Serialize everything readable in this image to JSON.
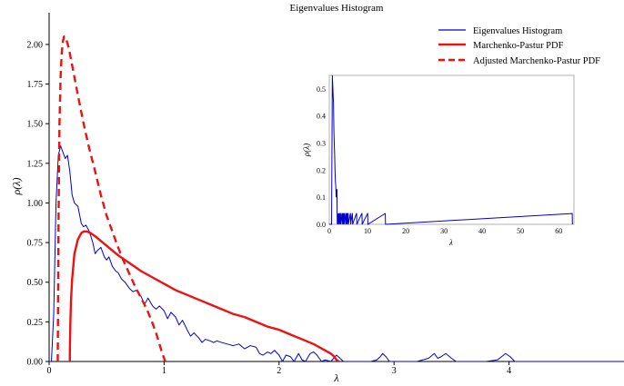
{
  "chart_data": {
    "type": "line",
    "title": "Eigenvalues Histogram",
    "xlabel": "λ",
    "ylabel": "ρ(λ)",
    "xlim": [
      0,
      5
    ],
    "ylim": [
      0,
      2.2
    ],
    "x_ticks": [
      0,
      1,
      2,
      3,
      4
    ],
    "y_ticks": [
      0.0,
      0.25,
      0.5,
      0.75,
      1.0,
      1.25,
      1.5,
      1.75,
      2.0
    ],
    "x_tick_labels": [
      "0",
      "1",
      "2",
      "3",
      "4"
    ],
    "y_tick_labels": [
      "0.00",
      "0.25",
      "0.50",
      "0.75",
      "1.00",
      "1.25",
      "1.50",
      "1.75",
      "2.00"
    ],
    "grid": false,
    "legend_position": "top-right",
    "series": [
      {
        "name": "Eigenvalues Histogram",
        "color": "#0000cc",
        "style": "solid",
        "x": [
          0.0,
          0.02,
          0.04,
          0.06,
          0.08,
          0.1,
          0.12,
          0.14,
          0.16,
          0.18,
          0.2,
          0.22,
          0.25,
          0.28,
          0.3,
          0.32,
          0.35,
          0.38,
          0.4,
          0.42,
          0.45,
          0.48,
          0.5,
          0.52,
          0.55,
          0.58,
          0.6,
          0.63,
          0.66,
          0.7,
          0.73,
          0.76,
          0.8,
          0.83,
          0.86,
          0.9,
          0.93,
          0.96,
          1.0,
          1.03,
          1.06,
          1.1,
          1.13,
          1.16,
          1.2,
          1.23,
          1.26,
          1.3,
          1.33,
          1.36,
          1.4,
          1.43,
          1.46,
          1.5,
          1.55,
          1.6,
          1.65,
          1.7,
          1.75,
          1.8,
          1.83,
          1.86,
          1.9,
          1.93,
          1.96,
          2.0,
          2.03,
          2.06,
          2.1,
          2.13,
          2.17,
          2.2,
          2.23,
          2.27,
          2.3,
          2.33,
          2.37,
          2.4,
          2.45,
          2.5,
          2.53,
          2.56,
          2.6,
          2.65,
          2.7,
          2.75,
          2.8,
          2.85,
          2.88,
          2.9,
          2.93,
          2.96,
          3.0,
          3.1,
          3.2,
          3.3,
          3.35,
          3.38,
          3.41,
          3.45,
          3.5,
          3.54,
          3.57,
          3.6,
          3.7,
          3.8,
          3.9,
          3.97,
          4.01,
          4.05,
          4.1,
          4.2,
          4.3,
          4.5,
          4.7,
          4.9,
          5.0
        ],
        "y": [
          0.0,
          0.0,
          0.3,
          1.0,
          1.3,
          1.36,
          1.32,
          1.28,
          1.3,
          1.2,
          1.05,
          1.0,
          0.98,
          0.87,
          0.85,
          0.86,
          0.82,
          0.75,
          0.68,
          0.7,
          0.72,
          0.66,
          0.64,
          0.66,
          0.6,
          0.57,
          0.56,
          0.52,
          0.5,
          0.46,
          0.44,
          0.45,
          0.41,
          0.36,
          0.4,
          0.35,
          0.33,
          0.35,
          0.32,
          0.27,
          0.31,
          0.28,
          0.23,
          0.26,
          0.2,
          0.16,
          0.18,
          0.15,
          0.12,
          0.14,
          0.13,
          0.12,
          0.13,
          0.12,
          0.11,
          0.1,
          0.11,
          0.08,
          0.1,
          0.09,
          0.05,
          0.04,
          0.06,
          0.05,
          0.07,
          0.04,
          0.0,
          0.04,
          0.03,
          0.0,
          0.05,
          0.01,
          0.0,
          0.05,
          0.06,
          0.04,
          0.0,
          0.01,
          0.0,
          0.04,
          0.02,
          0.0,
          0.0,
          0.0,
          0.0,
          0.0,
          0.0,
          0.01,
          0.03,
          0.05,
          0.03,
          0.0,
          0.0,
          0.0,
          0.0,
          0.02,
          0.05,
          0.02,
          0.03,
          0.05,
          0.02,
          0.0,
          0.0,
          0.0,
          0.0,
          0.0,
          0.01,
          0.05,
          0.03,
          0.0,
          0.0,
          0.0,
          0.0,
          0.0,
          0.0,
          0.0,
          0.0
        ]
      },
      {
        "name": "Marchenko-Pastur PDF",
        "color": "#ee1111",
        "style": "solid",
        "x": [
          0.18,
          0.181,
          0.185,
          0.19,
          0.2,
          0.22,
          0.25,
          0.28,
          0.3,
          0.33,
          0.36,
          0.4,
          0.45,
          0.5,
          0.6,
          0.7,
          0.8,
          0.9,
          1.0,
          1.1,
          1.2,
          1.3,
          1.4,
          1.5,
          1.6,
          1.7,
          1.8,
          1.9,
          2.0,
          2.1,
          2.2,
          2.3,
          2.35,
          2.4,
          2.45,
          2.48,
          2.5,
          2.52
        ],
        "y": [
          0.0,
          0.1,
          0.25,
          0.38,
          0.52,
          0.68,
          0.77,
          0.81,
          0.82,
          0.82,
          0.81,
          0.79,
          0.76,
          0.73,
          0.67,
          0.62,
          0.57,
          0.53,
          0.49,
          0.45,
          0.42,
          0.39,
          0.36,
          0.33,
          0.3,
          0.28,
          0.25,
          0.22,
          0.2,
          0.17,
          0.14,
          0.11,
          0.09,
          0.07,
          0.05,
          0.03,
          0.01,
          0.0
        ]
      },
      {
        "name": "Adjusted Marchenko-Pastur PDF",
        "color": "#ee1111",
        "style": "dashed",
        "x": [
          0.075,
          0.078,
          0.082,
          0.09,
          0.1,
          0.11,
          0.12,
          0.13,
          0.14,
          0.15,
          0.17,
          0.2,
          0.25,
          0.3,
          0.35,
          0.4,
          0.45,
          0.5,
          0.55,
          0.6,
          0.65,
          0.7,
          0.75,
          0.8,
          0.85,
          0.9,
          0.93,
          0.96,
          0.98,
          1.0,
          1.01
        ],
        "y": [
          0.0,
          0.4,
          0.9,
          1.5,
          1.8,
          1.95,
          2.02,
          2.05,
          2.05,
          2.03,
          1.98,
          1.87,
          1.68,
          1.5,
          1.34,
          1.2,
          1.05,
          0.92,
          0.82,
          0.72,
          0.63,
          0.55,
          0.47,
          0.4,
          0.33,
          0.24,
          0.18,
          0.11,
          0.06,
          0.02,
          0.0
        ]
      }
    ],
    "inset": {
      "title": "",
      "xlabel": "λ",
      "ylabel": "ρ(λ)",
      "xlim": [
        0,
        64
      ],
      "ylim": [
        0,
        0.55
      ],
      "x_ticks": [
        0,
        10,
        20,
        30,
        40,
        50,
        60
      ],
      "x_tick_labels": [
        "0",
        "10",
        "20",
        "30",
        "40",
        "50",
        "60"
      ],
      "y_ticks": [
        0.0,
        0.1,
        0.2,
        0.3,
        0.4,
        0.5
      ],
      "y_tick_labels": [
        "0.0",
        "0.1",
        "0.2",
        "0.3",
        "0.4",
        "0.5"
      ],
      "series": [
        {
          "name": "Eigenvalues Histogram",
          "color": "#0000cc",
          "x": [
            0.0,
            0.6,
            0.8,
            1.0,
            1.1,
            1.2,
            1.3,
            1.4,
            1.5,
            1.6,
            1.7,
            1.8,
            1.9,
            2.0,
            2.05,
            2.1,
            2.2,
            2.3,
            2.35,
            2.4,
            2.6,
            2.65,
            2.7,
            2.9,
            2.95,
            3.0,
            3.3,
            3.35,
            3.4,
            3.6,
            3.65,
            3.7,
            3.9,
            3.95,
            4.0,
            4.3,
            4.35,
            4.4,
            4.6,
            4.65,
            4.7,
            4.9,
            4.95,
            5.0,
            5.5,
            5.55,
            5.6,
            6.0,
            6.05,
            6.1,
            7.1,
            7.15,
            7.2,
            8.5,
            8.55,
            8.6,
            10.0,
            10.05,
            10.1,
            14.6,
            14.65,
            14.7,
            63.5,
            63.55,
            63.6
          ],
          "y": [
            0.0,
            0.0,
            0.55,
            0.48,
            0.45,
            0.35,
            0.3,
            0.26,
            0.2,
            0.16,
            0.14,
            0.1,
            0.12,
            0.13,
            0.04,
            0.0,
            0.04,
            0.0,
            0.04,
            0.0,
            0.04,
            0.04,
            0.0,
            0.04,
            0.04,
            0.0,
            0.04,
            0.04,
            0.0,
            0.04,
            0.04,
            0.0,
            0.04,
            0.04,
            0.0,
            0.04,
            0.04,
            0.0,
            0.04,
            0.04,
            0.0,
            0.04,
            0.04,
            0.0,
            0.04,
            0.04,
            0.0,
            0.04,
            0.04,
            0.0,
            0.04,
            0.04,
            0.0,
            0.04,
            0.04,
            0.0,
            0.04,
            0.04,
            0.0,
            0.04,
            0.04,
            0.0,
            0.04,
            0.04,
            0.0
          ]
        }
      ]
    }
  }
}
